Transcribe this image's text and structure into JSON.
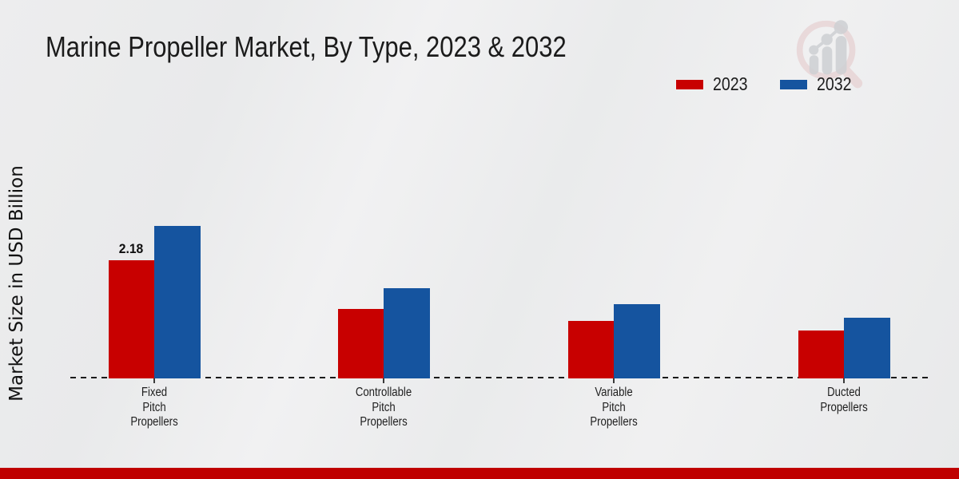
{
  "title": "Marine Propeller Market, By Type, 2023 & 2032",
  "y_axis_label": "Market Size in USD Billion",
  "legend": {
    "items": [
      {
        "label": "2023",
        "color": "#c80000"
      },
      {
        "label": "2032",
        "color": "#15549f"
      }
    ]
  },
  "watermark": {
    "name": "magnifier-bar-chart-logo",
    "ring_color": "#dfb9bc",
    "bars_color": "#c9cbce"
  },
  "footer": {
    "color": "#bf0000"
  },
  "chart_data": {
    "type": "bar",
    "title": "Marine Propeller Market, By Type, 2023 & 2032",
    "xlabel": "",
    "ylabel": "Market Size in USD Billion",
    "categories": [
      "Fixed Pitch Propellers",
      "Controllable Pitch Propellers",
      "Variable Pitch Propellers",
      "Ducted Propellers"
    ],
    "category_label_lines": [
      [
        "Fixed",
        "Pitch",
        "Propellers"
      ],
      [
        "Controllable",
        "Pitch",
        "Propellers"
      ],
      [
        "Variable",
        "Pitch",
        "Propellers"
      ],
      [
        "Ducted",
        "Propellers"
      ]
    ],
    "series": [
      {
        "name": "2023",
        "color": "#c80000",
        "values": [
          2.18,
          1.28,
          1.06,
          0.88
        ]
      },
      {
        "name": "2032",
        "color": "#15549f",
        "values": [
          2.81,
          1.66,
          1.37,
          1.12
        ]
      }
    ],
    "data_labels": [
      {
        "series": "2023",
        "category_index": 0,
        "text": "2.18"
      }
    ],
    "ylim": [
      0,
      3
    ],
    "grid": false,
    "legend_position": "top-right",
    "axis_line_style": "dashed"
  }
}
